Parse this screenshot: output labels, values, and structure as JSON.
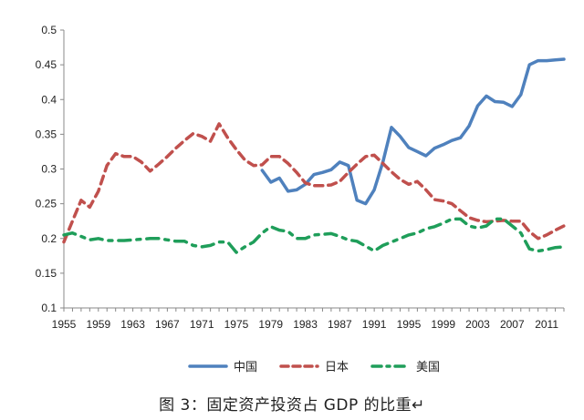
{
  "chart_data": {
    "type": "line",
    "title": "",
    "xlabel": "",
    "ylabel": "",
    "xlim": [
      1955,
      2013
    ],
    "ylim": [
      0.1,
      0.5
    ],
    "grid": false,
    "legend_position": "bottom",
    "x_tick_labels": [
      "1955",
      "1959",
      "1963",
      "1967",
      "1971",
      "1975",
      "1979",
      "1983",
      "1987",
      "1991",
      "1995",
      "1999",
      "2003",
      "2007",
      "2011"
    ],
    "y_tick_labels": [
      "0.1",
      "0.15",
      "0.2",
      "0.25",
      "0.3",
      "0.35",
      "0.4",
      "0.45",
      "0.5"
    ],
    "series": [
      {
        "name": "中国",
        "color": "#4f81bd",
        "dash": "solid",
        "x": [
          1978,
          1979,
          1980,
          1981,
          1982,
          1983,
          1984,
          1985,
          1986,
          1987,
          1988,
          1989,
          1990,
          1991,
          1992,
          1993,
          1994,
          1995,
          1996,
          1997,
          1998,
          1999,
          2000,
          2001,
          2002,
          2003,
          2004,
          2005,
          2006,
          2007,
          2008,
          2009,
          2010,
          2011,
          2012,
          2013
        ],
        "y": [
          0.298,
          0.281,
          0.287,
          0.268,
          0.27,
          0.278,
          0.292,
          0.295,
          0.299,
          0.31,
          0.305,
          0.255,
          0.25,
          0.27,
          0.31,
          0.36,
          0.347,
          0.331,
          0.325,
          0.319,
          0.33,
          0.335,
          0.341,
          0.345,
          0.362,
          0.391,
          0.405,
          0.397,
          0.396,
          0.39,
          0.407,
          0.45,
          0.456,
          0.456,
          0.457,
          0.458
        ]
      },
      {
        "name": "日本",
        "color": "#c0504d",
        "dash": "dash",
        "x": [
          1955,
          1956,
          1957,
          1958,
          1959,
          1960,
          1961,
          1962,
          1963,
          1964,
          1965,
          1966,
          1967,
          1968,
          1969,
          1970,
          1971,
          1972,
          1973,
          1974,
          1975,
          1976,
          1977,
          1978,
          1979,
          1980,
          1981,
          1982,
          1983,
          1984,
          1985,
          1986,
          1987,
          1988,
          1989,
          1990,
          1991,
          1992,
          1993,
          1994,
          1995,
          1996,
          1997,
          1998,
          1999,
          2000,
          2001,
          2002,
          2003,
          2004,
          2005,
          2006,
          2007,
          2008,
          2009,
          2010,
          2011,
          2012,
          2013
        ],
        "y": [
          0.195,
          0.225,
          0.255,
          0.245,
          0.268,
          0.305,
          0.322,
          0.318,
          0.318,
          0.31,
          0.297,
          0.307,
          0.318,
          0.33,
          0.341,
          0.351,
          0.347,
          0.34,
          0.365,
          0.345,
          0.328,
          0.313,
          0.305,
          0.306,
          0.318,
          0.318,
          0.308,
          0.295,
          0.28,
          0.276,
          0.276,
          0.277,
          0.282,
          0.295,
          0.307,
          0.318,
          0.32,
          0.308,
          0.296,
          0.285,
          0.278,
          0.282,
          0.27,
          0.256,
          0.254,
          0.25,
          0.24,
          0.23,
          0.226,
          0.224,
          0.225,
          0.226,
          0.225,
          0.225,
          0.21,
          0.2,
          0.205,
          0.212,
          0.218
        ]
      },
      {
        "name": "美国",
        "color": "#1f9e5a",
        "dash": "dashdot",
        "x": [
          1955,
          1956,
          1957,
          1958,
          1959,
          1960,
          1961,
          1962,
          1963,
          1964,
          1965,
          1966,
          1967,
          1968,
          1969,
          1970,
          1971,
          1972,
          1973,
          1974,
          1975,
          1976,
          1977,
          1978,
          1979,
          1980,
          1981,
          1982,
          1983,
          1984,
          1985,
          1986,
          1987,
          1988,
          1989,
          1990,
          1991,
          1992,
          1993,
          1994,
          1995,
          1996,
          1997,
          1998,
          1999,
          2000,
          2001,
          2002,
          2003,
          2004,
          2005,
          2006,
          2007,
          2008,
          2009,
          2010,
          2011,
          2012,
          2013
        ],
        "y": [
          0.205,
          0.208,
          0.203,
          0.198,
          0.2,
          0.197,
          0.197,
          0.197,
          0.198,
          0.199,
          0.2,
          0.2,
          0.198,
          0.196,
          0.196,
          0.19,
          0.188,
          0.19,
          0.195,
          0.195,
          0.18,
          0.188,
          0.195,
          0.208,
          0.217,
          0.212,
          0.21,
          0.2,
          0.2,
          0.205,
          0.206,
          0.207,
          0.203,
          0.198,
          0.196,
          0.189,
          0.182,
          0.19,
          0.195,
          0.2,
          0.205,
          0.208,
          0.214,
          0.217,
          0.222,
          0.228,
          0.228,
          0.218,
          0.215,
          0.218,
          0.228,
          0.228,
          0.218,
          0.208,
          0.185,
          0.182,
          0.184,
          0.187,
          0.188
        ]
      }
    ]
  },
  "caption": "图 3：固定资产投资占 GDP 的比重↵"
}
